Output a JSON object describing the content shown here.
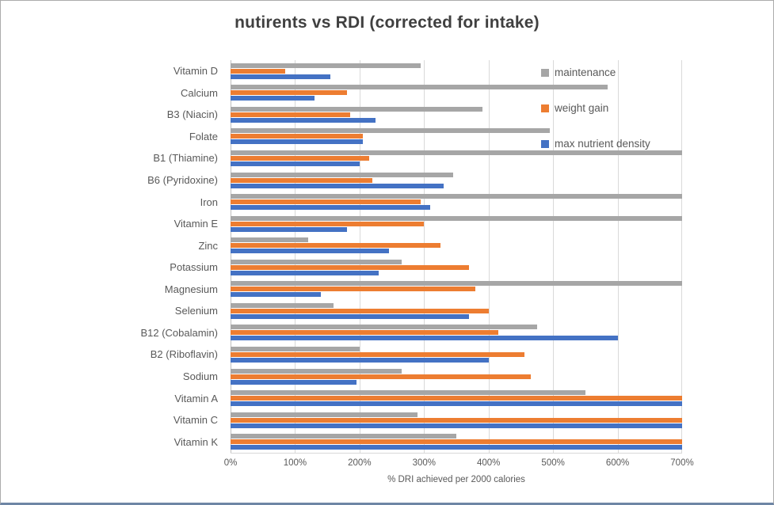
{
  "chart": {
    "title": "nutirents vs RDI (corrected for intake)",
    "xlabel": "% DRI achieved per 2000 calories",
    "legend_labels": [
      "maintenance",
      "weight gain",
      "max nutrient density"
    ]
  },
  "chart_data": {
    "type": "bar",
    "orientation": "horizontal",
    "title": "nutirents vs RDI (corrected for intake)",
    "xlabel": "% DRI achieved per 2000 calories",
    "ylabel": "",
    "xlim": [
      0,
      700
    ],
    "xticks": [
      "0%",
      "100%",
      "200%",
      "300%",
      "400%",
      "500%",
      "600%",
      "700%"
    ],
    "grid": true,
    "legend_position": "inside-top-right",
    "categories": [
      "Vitamin D",
      "Calcium",
      "B3 (Niacin)",
      "Folate",
      "B1 (Thiamine)",
      "B6 (Pyridoxine)",
      "Iron",
      "Vitamin E",
      "Zinc",
      "Potassium",
      "Magnesium",
      "Selenium",
      "B12 (Cobalamin)",
      "B2 (Riboflavin)",
      "Sodium",
      "Vitamin A",
      "Vitamin C",
      "Vitamin K"
    ],
    "series": [
      {
        "name": "maintenance",
        "color": "#a6a6a6",
        "values": [
          295,
          585,
          390,
          495,
          700,
          345,
          700,
          700,
          120,
          265,
          700,
          160,
          475,
          200,
          265,
          550,
          290,
          350
        ]
      },
      {
        "name": "weight gain",
        "color": "#ed7d31",
        "values": [
          85,
          180,
          185,
          205,
          215,
          220,
          295,
          300,
          325,
          370,
          380,
          400,
          415,
          455,
          465,
          700,
          700,
          700
        ]
      },
      {
        "name": "max nutrient density",
        "color": "#4472c4",
        "values": [
          155,
          130,
          225,
          205,
          200,
          330,
          310,
          180,
          245,
          230,
          140,
          370,
          600,
          400,
          195,
          700,
          700,
          700
        ]
      }
    ]
  }
}
